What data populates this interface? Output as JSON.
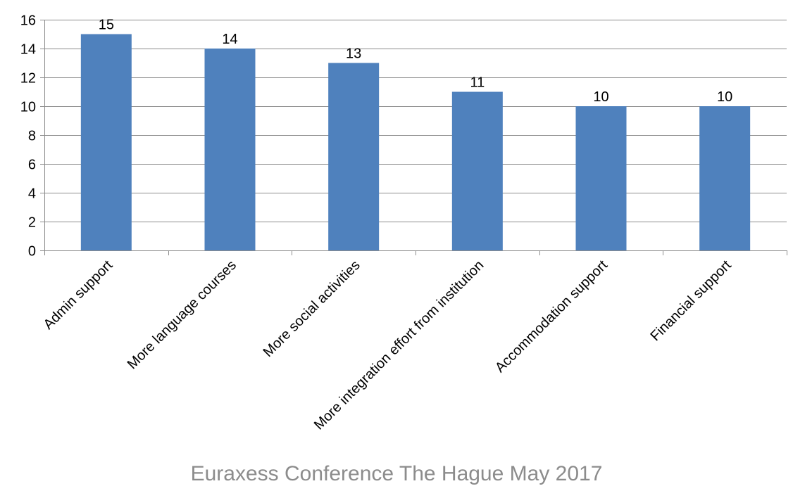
{
  "chart_data": {
    "type": "bar",
    "categories": [
      "Admin support",
      "More language courses",
      "More social activities",
      "More integration effort from institution",
      "Accommodation support",
      "Financial support"
    ],
    "values": [
      15,
      14,
      13,
      11,
      10,
      10
    ],
    "data_labels": [
      "15",
      "14",
      "13",
      "11",
      "10",
      "10"
    ],
    "y_ticks": [
      0,
      2,
      4,
      6,
      8,
      10,
      12,
      14,
      16
    ],
    "ylim": [
      0,
      16
    ],
    "grid": true,
    "legend": "none",
    "title": "",
    "xlabel": "",
    "ylabel": "",
    "colors": {
      "bar": "#4f81bd",
      "grid": "#8c8c8c",
      "axis": "#8c8c8c",
      "text": "#000000",
      "footer": "#8c8c8c"
    }
  },
  "footer": {
    "text": "Euraxess Conference The Hague May 2017"
  }
}
